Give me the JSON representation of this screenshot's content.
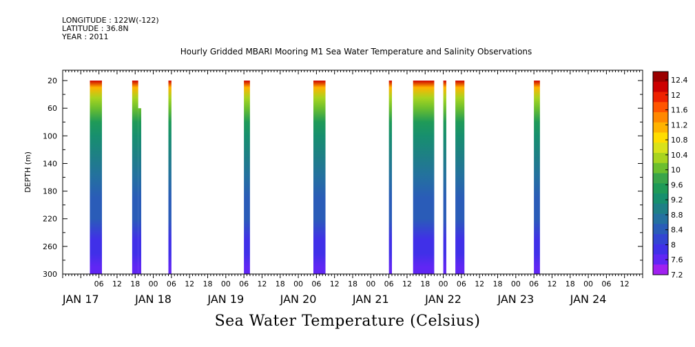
{
  "header": {
    "longitude": "LONGITUDE : 122W(-122)",
    "latitude": "LATITUDE : 36.8N",
    "year": "YEAR : 2011"
  },
  "chart_data": {
    "type": "heatmap",
    "title": "Hourly Gridded MBARI Mooring M1 Sea Water Temperature and Salinity Observations",
    "variable_label": "Sea Water Temperature (Celsius)",
    "ylabel": "DEPTH (m)",
    "y_range": [
      300,
      5
    ],
    "y_ticks": [
      20,
      60,
      100,
      140,
      180,
      220,
      260,
      300
    ],
    "x_range_hours": [
      -6,
      186
    ],
    "x_origin": "JAN 17 00:00",
    "x_hour_ticks": [
      {
        "h": 6,
        "label": "06"
      },
      {
        "h": 12,
        "label": "12"
      },
      {
        "h": 18,
        "label": "18"
      },
      {
        "h": 24,
        "label": "00"
      },
      {
        "h": 30,
        "label": "06"
      },
      {
        "h": 36,
        "label": "12"
      },
      {
        "h": 42,
        "label": "18"
      },
      {
        "h": 48,
        "label": "00"
      },
      {
        "h": 54,
        "label": "06"
      },
      {
        "h": 60,
        "label": "12"
      },
      {
        "h": 66,
        "label": "18"
      },
      {
        "h": 72,
        "label": "00"
      },
      {
        "h": 78,
        "label": "06"
      },
      {
        "h": 84,
        "label": "12"
      },
      {
        "h": 90,
        "label": "18"
      },
      {
        "h": 96,
        "label": "00"
      },
      {
        "h": 102,
        "label": "06"
      },
      {
        "h": 108,
        "label": "12"
      },
      {
        "h": 114,
        "label": "18"
      },
      {
        "h": 120,
        "label": "00"
      },
      {
        "h": 126,
        "label": "06"
      },
      {
        "h": 132,
        "label": "12"
      },
      {
        "h": 138,
        "label": "18"
      },
      {
        "h": 144,
        "label": "00"
      },
      {
        "h": 150,
        "label": "06"
      },
      {
        "h": 156,
        "label": "12"
      },
      {
        "h": 162,
        "label": "18"
      },
      {
        "h": 168,
        "label": "00"
      },
      {
        "h": 174,
        "label": "06"
      },
      {
        "h": 180,
        "label": "12"
      }
    ],
    "day_labels": [
      {
        "h": 0,
        "label": "JAN 17"
      },
      {
        "h": 24,
        "label": "JAN 18"
      },
      {
        "h": 48,
        "label": "JAN 19"
      },
      {
        "h": 72,
        "label": "JAN 20"
      },
      {
        "h": 96,
        "label": "JAN 21"
      },
      {
        "h": 120,
        "label": "JAN 22"
      },
      {
        "h": 144,
        "label": "JAN 23"
      },
      {
        "h": 168,
        "label": "JAN 24"
      }
    ],
    "colorbar": {
      "levels": [
        "12.4",
        "12",
        "11.6",
        "11.2",
        "10.8",
        "10.4",
        "10",
        "9.6",
        "9.2",
        "8.8",
        "8.4",
        "8",
        "7.6",
        "7.2"
      ],
      "colors": [
        "#9b0000",
        "#cc0000",
        "#ee2200",
        "#ff5500",
        "#ff8800",
        "#ffb300",
        "#ffdd00",
        "#d9e21a",
        "#a8d41f",
        "#6cbf2e",
        "#3aa54a",
        "#1f9a58",
        "#178f6e",
        "#1e7f86",
        "#2470a0",
        "#2a5cb8",
        "#3345d2",
        "#4030e8",
        "#6026f4",
        "#a020f0"
      ]
    },
    "profile_surface_to_bottom": [
      {
        "depth": 20,
        "temp": 12.2
      },
      {
        "depth": 30,
        "temp": 11.2
      },
      {
        "depth": 45,
        "temp": 10.4
      },
      {
        "depth": 60,
        "temp": 9.9
      },
      {
        "depth": 80,
        "temp": 9.5
      },
      {
        "depth": 100,
        "temp": 9.2
      },
      {
        "depth": 130,
        "temp": 8.9
      },
      {
        "depth": 160,
        "temp": 8.7
      },
      {
        "depth": 190,
        "temp": 8.5
      },
      {
        "depth": 220,
        "temp": 8.3
      },
      {
        "depth": 250,
        "temp": 8.0
      },
      {
        "depth": 270,
        "temp": 7.8
      },
      {
        "depth": 290,
        "temp": 7.6
      },
      {
        "depth": 300,
        "temp": 7.5
      }
    ],
    "observation_blocks": [
      {
        "start_h": 3,
        "end_h": 7,
        "top_depth": 20,
        "bottom_depth": 300
      },
      {
        "start_h": 17,
        "end_h": 19,
        "top_depth": 20,
        "bottom_depth": 300
      },
      {
        "start_h": 19,
        "end_h": 20,
        "top_depth": 60,
        "bottom_depth": 300
      },
      {
        "start_h": 29,
        "end_h": 30,
        "top_depth": 20,
        "bottom_depth": 300
      },
      {
        "start_h": 54,
        "end_h": 56,
        "top_depth": 20,
        "bottom_depth": 300
      },
      {
        "start_h": 77,
        "end_h": 81,
        "top_depth": 20,
        "bottom_depth": 300
      },
      {
        "start_h": 102,
        "end_h": 103,
        "top_depth": 20,
        "bottom_depth": 300
      },
      {
        "start_h": 110,
        "end_h": 117,
        "top_depth": 20,
        "bottom_depth": 300
      },
      {
        "start_h": 120,
        "end_h": 121,
        "top_depth": 20,
        "bottom_depth": 300
      },
      {
        "start_h": 124,
        "end_h": 127,
        "top_depth": 20,
        "bottom_depth": 300
      },
      {
        "start_h": 150,
        "end_h": 152,
        "top_depth": 20,
        "bottom_depth": 300
      }
    ]
  }
}
